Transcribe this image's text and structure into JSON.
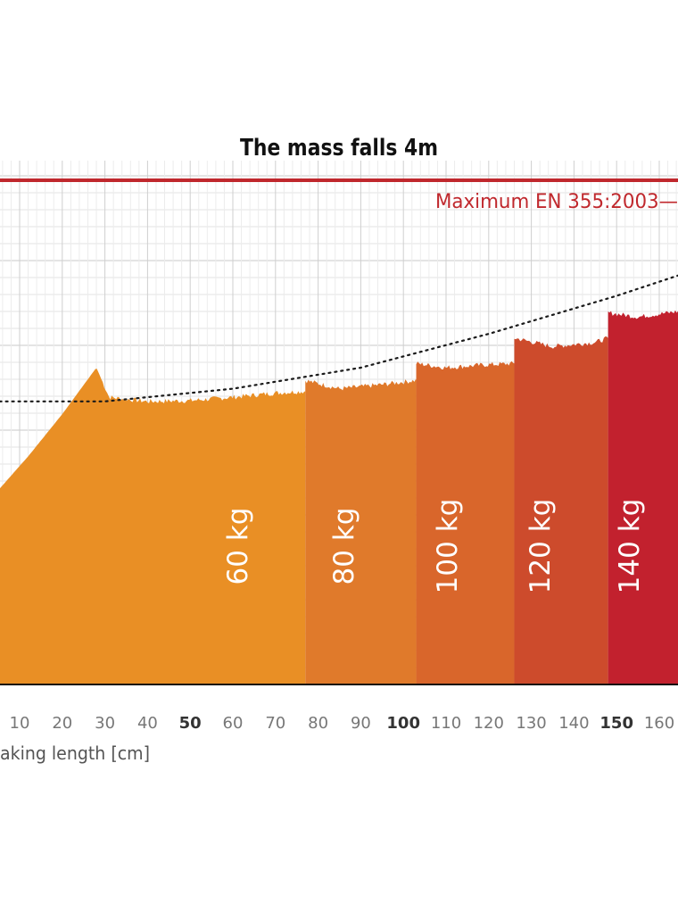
{
  "chart_data": {
    "type": "area",
    "title": "The mass falls 4m",
    "xlabel": "aking length [cm]",
    "ylabel": "",
    "xlim": [
      -2,
      165
    ],
    "ylim": [
      0,
      6.2
    ],
    "x_ticks": [
      {
        "value": 10,
        "label": "10",
        "bold": false
      },
      {
        "value": 20,
        "label": "20",
        "bold": false
      },
      {
        "value": 30,
        "label": "30",
        "bold": false
      },
      {
        "value": 40,
        "label": "40",
        "bold": false
      },
      {
        "value": 50,
        "label": "50",
        "bold": true
      },
      {
        "value": 60,
        "label": "60",
        "bold": false
      },
      {
        "value": 70,
        "label": "70",
        "bold": false
      },
      {
        "value": 80,
        "label": "80",
        "bold": false
      },
      {
        "value": 90,
        "label": "90",
        "bold": false
      },
      {
        "value": 100,
        "label": "100",
        "bold": true
      },
      {
        "value": 110,
        "label": "110",
        "bold": false
      },
      {
        "value": 120,
        "label": "120",
        "bold": false
      },
      {
        "value": 130,
        "label": "130",
        "bold": false
      },
      {
        "value": 140,
        "label": "140",
        "bold": false
      },
      {
        "value": 150,
        "label": "150",
        "bold": true
      },
      {
        "value": 160,
        "label": "160",
        "bold": false
      }
    ],
    "grid": true,
    "max_line": {
      "label": "Maximum EN 355:2003—",
      "value": 6.0,
      "color": "#c0282d"
    },
    "trend_line": {
      "style": "dotted",
      "points": [
        [
          -2,
          3.35
        ],
        [
          30,
          3.35
        ],
        [
          60,
          3.5
        ],
        [
          90,
          3.75
        ],
        [
          120,
          4.15
        ],
        [
          150,
          4.6
        ],
        [
          165,
          4.85
        ]
      ]
    },
    "series": [
      {
        "name": "60 kg",
        "color": "#e98f25",
        "points": [
          [
            -2,
            2.1
          ],
          [
            5,
            2.3
          ],
          [
            12,
            2.7
          ],
          [
            20,
            3.2
          ],
          [
            28,
            3.75
          ],
          [
            31,
            3.4
          ],
          [
            40,
            3.35
          ],
          [
            50,
            3.36
          ],
          [
            60,
            3.4
          ],
          [
            70,
            3.45
          ],
          [
            77,
            3.47
          ]
        ]
      },
      {
        "name": "80 kg",
        "color": "#e07a2b",
        "points": [
          [
            77,
            3.6
          ],
          [
            85,
            3.5
          ],
          [
            95,
            3.55
          ],
          [
            103,
            3.6
          ]
        ]
      },
      {
        "name": "100 kg",
        "color": "#d9662b",
        "points": [
          [
            103,
            3.8
          ],
          [
            110,
            3.75
          ],
          [
            118,
            3.78
          ],
          [
            126,
            3.8
          ]
        ]
      },
      {
        "name": "120 kg",
        "color": "#cd4b2c",
        "points": [
          [
            126,
            4.1
          ],
          [
            135,
            4.0
          ],
          [
            145,
            4.05
          ],
          [
            148,
            4.1
          ]
        ]
      },
      {
        "name": "140 kg",
        "color": "#c2212e",
        "points": [
          [
            148,
            4.4
          ],
          [
            155,
            4.35
          ],
          [
            165,
            4.42
          ]
        ]
      }
    ]
  }
}
